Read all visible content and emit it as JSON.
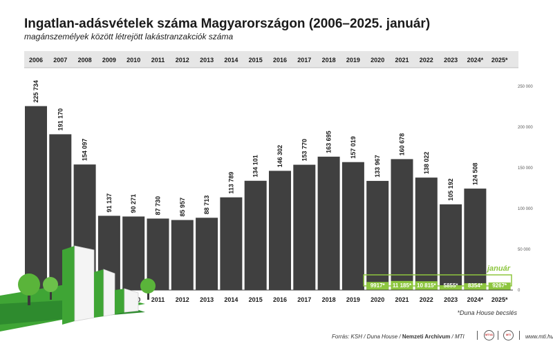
{
  "header": {
    "title": "Ingatlan-adásvételek száma Magyarországon (2006–2025. január)",
    "subtitle": "magánszemélyek között létrejött lakástranzakciók száma"
  },
  "chart_data": {
    "type": "bar",
    "categories": [
      "2006",
      "2007",
      "2008",
      "2009",
      "2010",
      "2011",
      "2012",
      "2013",
      "2014",
      "2015",
      "2016",
      "2017",
      "2018",
      "2019",
      "2020",
      "2021",
      "2022",
      "2023",
      "2024*",
      "2025*"
    ],
    "series": [
      {
        "values": [
          225734,
          191170,
          154097,
          91137,
          90271,
          87730,
          85957,
          88713,
          113789,
          134101,
          146302,
          153770,
          163695,
          157019,
          133967,
          160678,
          138022,
          105192,
          124508,
          null
        ],
        "value_labels": [
          "225 734",
          "191 170",
          "154 097",
          "91 137",
          "90 271",
          "87 730",
          "85 957",
          "88 713",
          "113 789",
          "134 101",
          "146 302",
          "153 770",
          "163 695",
          "157 019",
          "133 967",
          "160 678",
          "138 022",
          "105 192",
          "124 508",
          ""
        ]
      },
      {
        "name": "január",
        "x": [
          "2020",
          "2021",
          "2022",
          "2023",
          "2024*",
          "2025*"
        ],
        "values": [
          9917,
          11185,
          10815,
          5855,
          8354,
          9267
        ],
        "value_labels": [
          "9917*",
          "11 185*",
          "10 815*",
          "5855*",
          "8354*",
          "9267*"
        ]
      }
    ],
    "y_tick_labels": [
      "250 000",
      "200 000",
      "150 000",
      "100 000",
      "50 000",
      "0"
    ],
    "y_ticks": [
      250000,
      200000,
      150000,
      100000,
      50000,
      0
    ],
    "ylim": [
      0,
      250000
    ],
    "grid": false,
    "bar_color": "#404040",
    "january_color": "#8dc63f",
    "header_band_color": "#e6e6e6",
    "building_green": "#3fa535"
  },
  "footnote": "*Duna House becslés",
  "source": {
    "prefix": "Forrás: KSH / Duna House / ",
    "bold": "Nemzeti Archívum",
    "suffix": " / MTI"
  },
  "seal1": "MTVA",
  "seal2": "MTI",
  "credit": "www.mti.hu"
}
